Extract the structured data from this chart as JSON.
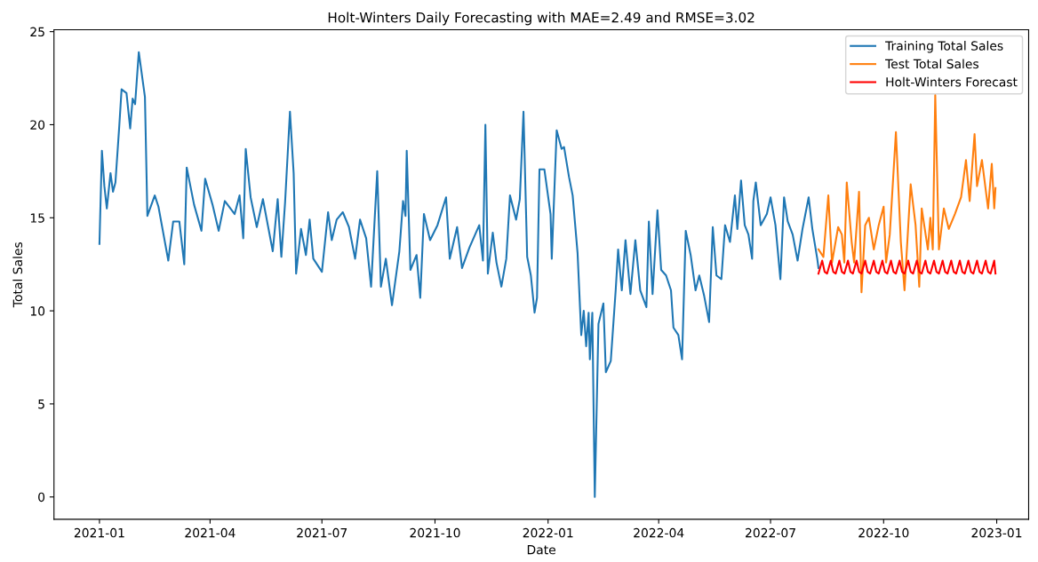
{
  "chart_data": {
    "type": "line",
    "title": "Holt-Winters Daily Forecasting with MAE=2.49 and RMSE=3.02",
    "xlabel": "Date",
    "ylabel": "Total Sales",
    "xlim": [
      "2020-11-25",
      "2023-01-27"
    ],
    "xticks": [
      "2021-01",
      "2021-04",
      "2021-07",
      "2021-10",
      "2022-01",
      "2022-04",
      "2022-07",
      "2022-10",
      "2023-01"
    ],
    "ylim": [
      -1.2,
      25.1
    ],
    "yticks": [
      0,
      5,
      10,
      15,
      20,
      25
    ],
    "grid": false,
    "legend": "top right",
    "line_style": "solid",
    "marker": "none",
    "series": [
      {
        "name": "Training Total Sales",
        "color": "#1f77b4",
        "x": [
          "2021-01-01",
          "2021-01-03",
          "2021-01-05",
          "2021-01-07",
          "2021-01-10",
          "2021-01-12",
          "2021-01-14",
          "2021-01-17",
          "2021-01-19",
          "2021-01-23",
          "2021-01-26",
          "2021-01-28",
          "2021-01-30",
          "2021-02-02",
          "2021-02-07",
          "2021-02-09",
          "2021-02-15",
          "2021-02-18",
          "2021-02-26",
          "2021-03-02",
          "2021-03-07",
          "2021-03-11",
          "2021-03-13",
          "2021-03-19",
          "2021-03-25",
          "2021-03-28",
          "2021-04-03",
          "2021-04-08",
          "2021-04-13",
          "2021-04-21",
          "2021-04-25",
          "2021-04-28",
          "2021-04-30",
          "2021-05-04",
          "2021-05-09",
          "2021-05-14",
          "2021-05-22",
          "2021-05-26",
          "2021-05-29",
          "2021-06-01",
          "2021-06-05",
          "2021-06-08",
          "2021-06-10",
          "2021-06-14",
          "2021-06-18",
          "2021-06-21",
          "2021-06-24",
          "2021-07-01",
          "2021-07-06",
          "2021-07-09",
          "2021-07-13",
          "2021-07-18",
          "2021-07-23",
          "2021-07-28",
          "2021-08-01",
          "2021-08-06",
          "2021-08-10",
          "2021-08-15",
          "2021-08-18",
          "2021-08-22",
          "2021-08-27",
          "2021-09-02",
          "2021-09-05",
          "2021-09-07",
          "2021-09-08",
          "2021-09-11",
          "2021-09-16",
          "2021-09-19",
          "2021-09-22",
          "2021-09-27",
          "2021-10-03",
          "2021-10-10",
          "2021-10-13",
          "2021-10-19",
          "2021-10-23",
          "2021-10-29",
          "2021-11-06",
          "2021-11-09",
          "2021-11-11",
          "2021-11-13",
          "2021-11-17",
          "2021-11-20",
          "2021-11-24",
          "2021-11-28",
          "2021-12-01",
          "2021-12-06",
          "2021-12-09",
          "2021-12-12",
          "2021-12-15",
          "2021-12-18",
          "2021-12-21",
          "2021-12-23",
          "2021-12-25",
          "2021-12-29",
          "2022-01-03",
          "2022-01-04",
          "2022-01-08",
          "2022-01-12",
          "2022-01-14",
          "2022-01-18",
          "2022-01-21",
          "2022-01-25",
          "2022-01-28",
          "2022-01-30",
          "2022-02-01",
          "2022-02-03",
          "2022-02-04",
          "2022-02-06",
          "2022-02-08",
          "2022-02-11",
          "2022-02-15",
          "2022-02-17",
          "2022-02-21",
          "2022-02-25",
          "2022-02-27",
          "2022-03-02",
          "2022-03-05",
          "2022-03-09",
          "2022-03-13",
          "2022-03-17",
          "2022-03-22",
          "2022-03-24",
          "2022-03-27",
          "2022-03-31",
          "2022-04-03",
          "2022-04-07",
          "2022-04-11",
          "2022-04-13",
          "2022-04-17",
          "2022-04-20",
          "2022-04-23",
          "2022-04-27",
          "2022-05-01",
          "2022-05-04",
          "2022-05-08",
          "2022-05-12",
          "2022-05-15",
          "2022-05-18",
          "2022-05-22",
          "2022-05-25",
          "2022-05-29",
          "2022-06-02",
          "2022-06-04",
          "2022-06-07",
          "2022-06-10",
          "2022-06-13",
          "2022-06-16",
          "2022-06-17",
          "2022-06-19",
          "2022-06-23",
          "2022-06-28",
          "2022-07-01",
          "2022-07-05",
          "2022-07-09",
          "2022-07-12",
          "2022-07-15",
          "2022-07-19",
          "2022-07-23",
          "2022-07-27",
          "2022-08-01",
          "2022-08-04",
          "2022-08-08",
          "2022-08-09"
        ],
        "values": [
          13.6,
          18.6,
          16.7,
          15.5,
          17.4,
          16.4,
          16.9,
          19.8,
          21.9,
          21.7,
          19.8,
          21.4,
          21.1,
          23.9,
          21.5,
          15.1,
          16.2,
          15.6,
          12.7,
          14.8,
          14.8,
          12.5,
          17.7,
          15.7,
          14.3,
          17.1,
          15.7,
          14.3,
          15.9,
          15.2,
          16.2,
          13.9,
          18.7,
          16.1,
          14.5,
          16.0,
          13.2,
          16.0,
          12.9,
          15.8,
          20.7,
          17.4,
          12.0,
          14.4,
          13.0,
          14.9,
          12.8,
          12.1,
          15.3,
          13.8,
          14.9,
          15.3,
          14.5,
          12.8,
          14.9,
          13.9,
          11.3,
          17.5,
          11.3,
          12.8,
          10.3,
          13.2,
          15.9,
          15.1,
          18.6,
          12.2,
          13.0,
          10.7,
          15.2,
          13.8,
          14.6,
          16.1,
          12.8,
          14.5,
          12.3,
          13.4,
          14.6,
          12.7,
          20.0,
          12.0,
          14.2,
          12.6,
          11.3,
          12.8,
          16.2,
          14.9,
          16.0,
          20.7,
          12.9,
          11.9,
          9.9,
          10.7,
          17.6,
          17.6,
          15.2,
          12.8,
          19.7,
          18.7,
          18.8,
          17.2,
          16.2,
          13.1,
          8.7,
          10.0,
          8.1,
          9.9,
          7.4,
          9.9,
          0.0,
          9.3,
          10.4,
          6.7,
          7.3,
          11.1,
          13.3,
          11.1,
          13.8,
          10.9,
          13.8,
          11.1,
          10.2,
          14.8,
          10.9,
          15.4,
          12.2,
          11.9,
          11.1,
          9.1,
          8.7,
          7.4,
          14.3,
          13.0,
          11.1,
          11.9,
          10.8,
          9.4,
          14.5,
          11.9,
          11.7,
          14.6,
          13.7,
          16.2,
          14.4,
          17.0,
          14.6,
          14.1,
          12.8,
          15.9,
          16.9,
          14.6,
          15.2,
          16.1,
          14.6,
          11.7,
          16.1,
          14.8,
          14.1,
          12.7,
          14.4,
          16.1,
          14.4,
          12.8,
          12.3
        ]
      },
      {
        "name": "Test Total Sales",
        "color": "#ff7f0e",
        "x": [
          "2022-08-09",
          "2022-08-13",
          "2022-08-17",
          "2022-08-20",
          "2022-08-25",
          "2022-08-28",
          "2022-08-30",
          "2022-09-01",
          "2022-09-05",
          "2022-09-07",
          "2022-09-11",
          "2022-09-13",
          "2022-09-16",
          "2022-09-19",
          "2022-09-23",
          "2022-09-27",
          "2022-10-01",
          "2022-10-03",
          "2022-10-06",
          "2022-10-11",
          "2022-10-15",
          "2022-10-18",
          "2022-10-23",
          "2022-10-27",
          "2022-10-30",
          "2022-11-01",
          "2022-11-06",
          "2022-11-08",
          "2022-11-10",
          "2022-11-12",
          "2022-11-15",
          "2022-11-19",
          "2022-11-23",
          "2022-11-28",
          "2022-12-03",
          "2022-12-07",
          "2022-12-10",
          "2022-12-14",
          "2022-12-16",
          "2022-12-20",
          "2022-12-25",
          "2022-12-28",
          "2022-12-30",
          "2022-12-31"
        ],
        "values": [
          13.3,
          12.9,
          16.2,
          12.6,
          14.5,
          14.1,
          12.6,
          16.9,
          13.7,
          12.6,
          16.4,
          11.0,
          14.6,
          15.0,
          13.3,
          14.6,
          15.6,
          12.6,
          14.1,
          19.6,
          13.7,
          11.1,
          16.8,
          14.6,
          11.3,
          15.5,
          13.3,
          15.0,
          13.3,
          21.6,
          13.3,
          15.5,
          14.4,
          15.2,
          16.1,
          18.1,
          15.9,
          19.5,
          16.7,
          18.1,
          15.5,
          17.9,
          15.5,
          16.6
        ]
      },
      {
        "name": "Holt-Winters Forecast",
        "color": "#ff0000",
        "x": [
          "2022-08-09",
          "2022-08-12",
          "2022-08-14",
          "2022-08-16",
          "2022-08-19",
          "2022-08-21",
          "2022-08-23",
          "2022-08-26",
          "2022-08-28",
          "2022-08-30",
          "2022-09-02",
          "2022-09-04",
          "2022-09-06",
          "2022-09-09",
          "2022-09-11",
          "2022-09-13",
          "2022-09-16",
          "2022-09-18",
          "2022-09-20",
          "2022-09-23",
          "2022-09-25",
          "2022-09-27",
          "2022-09-30",
          "2022-10-02",
          "2022-10-04",
          "2022-10-07",
          "2022-10-09",
          "2022-10-11",
          "2022-10-14",
          "2022-10-16",
          "2022-10-18",
          "2022-10-21",
          "2022-10-23",
          "2022-10-25",
          "2022-10-28",
          "2022-10-30",
          "2022-11-01",
          "2022-11-04",
          "2022-11-06",
          "2022-11-08",
          "2022-11-11",
          "2022-11-13",
          "2022-11-15",
          "2022-11-18",
          "2022-11-20",
          "2022-11-22",
          "2022-11-25",
          "2022-11-27",
          "2022-11-29",
          "2022-12-02",
          "2022-12-04",
          "2022-12-06",
          "2022-12-09",
          "2022-12-11",
          "2022-12-13",
          "2022-12-16",
          "2022-12-18",
          "2022-12-20",
          "2022-12-23",
          "2022-12-25",
          "2022-12-27",
          "2022-12-30",
          "2022-12-31"
        ],
        "values": [
          12.0,
          12.7,
          12.1,
          12.0,
          12.7,
          12.1,
          12.0,
          12.7,
          12.1,
          12.0,
          12.7,
          12.1,
          12.0,
          12.7,
          12.1,
          12.0,
          12.7,
          12.1,
          12.0,
          12.7,
          12.1,
          12.0,
          12.7,
          12.1,
          12.0,
          12.7,
          12.1,
          12.0,
          12.7,
          12.1,
          12.0,
          12.7,
          12.1,
          12.0,
          12.7,
          12.1,
          12.0,
          12.7,
          12.1,
          12.0,
          12.7,
          12.1,
          12.0,
          12.7,
          12.1,
          12.0,
          12.7,
          12.1,
          12.0,
          12.7,
          12.1,
          12.0,
          12.7,
          12.1,
          12.0,
          12.7,
          12.1,
          12.0,
          12.7,
          12.1,
          12.0,
          12.7,
          12.0
        ]
      }
    ]
  }
}
